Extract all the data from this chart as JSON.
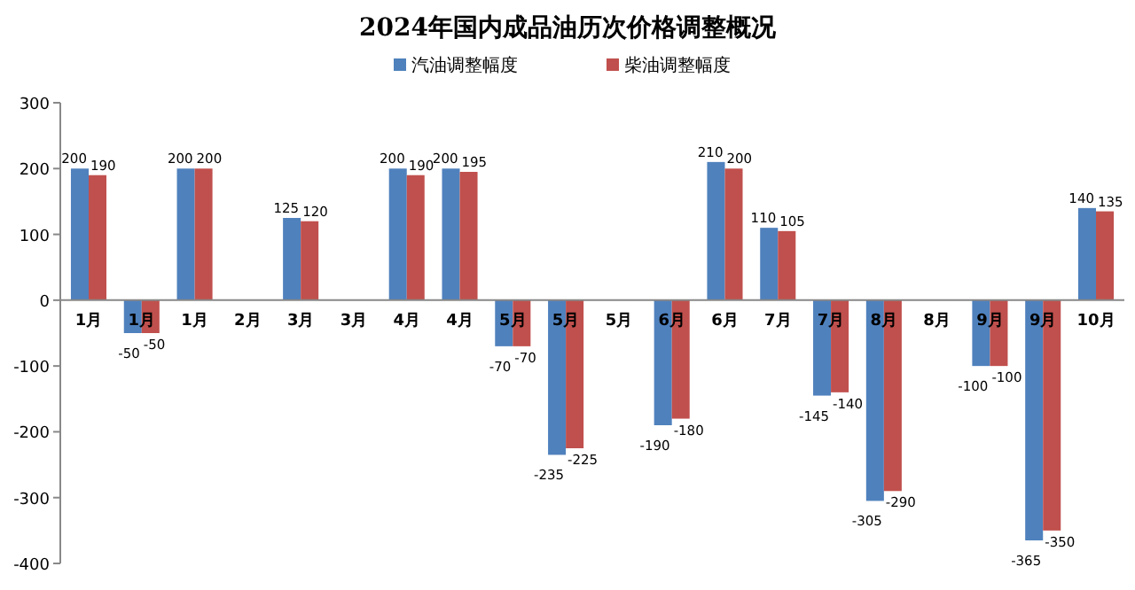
{
  "chart_data": {
    "type": "bar",
    "title": "2024年国内成品油历次价格调整概况",
    "categories": [
      "1月",
      "1月",
      "1月",
      "2月",
      "3月",
      "3月",
      "4月",
      "4月",
      "5月",
      "5月",
      "5月",
      "6月",
      "6月",
      "7月",
      "7月",
      "8月",
      "8月",
      "9月",
      "9月",
      "10月"
    ],
    "series": [
      {
        "name": "汽油调整幅度",
        "color": "#4f81bd",
        "values": [
          200,
          -50,
          200,
          null,
          125,
          null,
          200,
          200,
          -70,
          -235,
          null,
          -190,
          210,
          110,
          -145,
          -305,
          null,
          -100,
          -365,
          140
        ]
      },
      {
        "name": "柴油调整幅度",
        "color": "#c0504d",
        "values": [
          190,
          -50,
          200,
          null,
          120,
          null,
          190,
          195,
          -70,
          -225,
          null,
          -180,
          200,
          105,
          -140,
          -290,
          null,
          -100,
          -350,
          135
        ]
      }
    ],
    "ylim": [
      -400,
      300
    ],
    "yticks": [
      -400,
      -300,
      -200,
      -100,
      0,
      100,
      200,
      300
    ],
    "data_labels": true,
    "legend": "top",
    "grid": false
  }
}
